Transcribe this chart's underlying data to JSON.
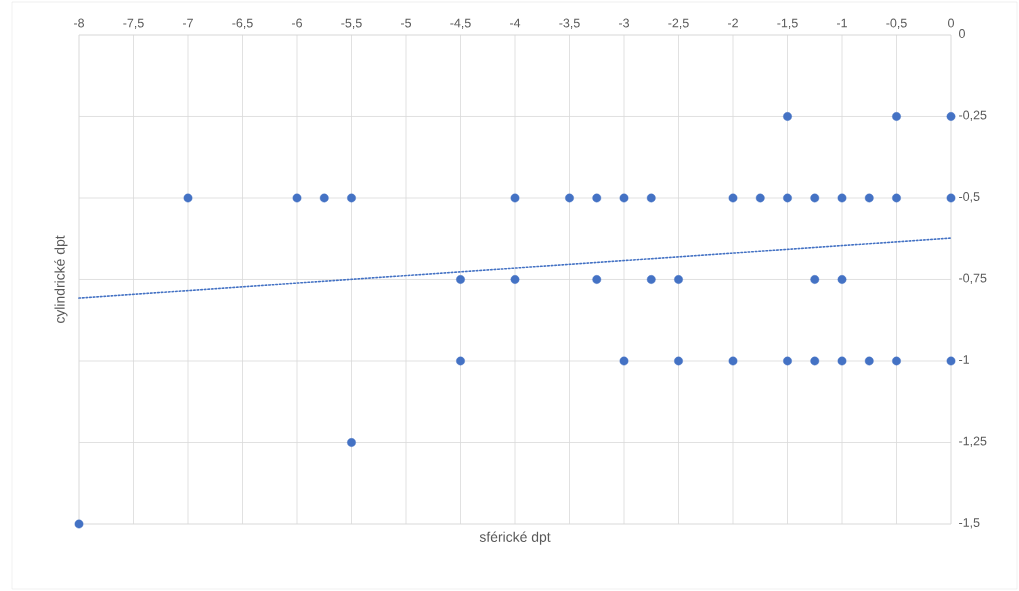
{
  "chart_data": {
    "type": "scatter",
    "xlabel": "sférické dpt",
    "ylabel": "cylindrické dpt",
    "xlim": [
      -8,
      0
    ],
    "ylim": [
      -1.5,
      0
    ],
    "xticks": [
      -8,
      {
        "value": -7.5,
        "label": "-7,5"
      },
      -7,
      {
        "value": -6.5,
        "label": "-6,5"
      },
      -6,
      {
        "value": -5.5,
        "label": "-5,5"
      },
      -5,
      {
        "value": -4.5,
        "label": "-4,5"
      },
      -4,
      {
        "value": -3.5,
        "label": "-3,5"
      },
      -3,
      {
        "value": -2.5,
        "label": "-2,5"
      },
      -2,
      {
        "value": -1.5,
        "label": "-1,5"
      },
      -1,
      {
        "value": -0.5,
        "label": "-0,5"
      },
      0
    ],
    "yticks": [
      {
        "value": -1.5,
        "label": "-1,5"
      },
      {
        "value": -1.25,
        "label": "-1,25"
      },
      -1,
      {
        "value": -0.75,
        "label": "-0,75"
      },
      {
        "value": -0.5,
        "label": "-0,5"
      },
      {
        "value": -0.25,
        "label": "-0,25"
      },
      0
    ],
    "grid": true,
    "series": [
      {
        "type": "scatter",
        "marker": "circle",
        "color": "#4472c4",
        "x": [
          -1.5,
          -0.5,
          0,
          -7,
          -6,
          -5.75,
          -5.5,
          -4,
          -3.5,
          -3.25,
          -3,
          -2.75,
          -2,
          -1.75,
          -1.5,
          -1.25,
          -1,
          -0.75,
          -0.5,
          0,
          -4.5,
          -4,
          -3.25,
          -2.75,
          -2.5,
          -1.25,
          -1,
          -4.5,
          -3,
          -2.5,
          -2,
          -1.5,
          -1.25,
          -1,
          -0.75,
          -0.5,
          0,
          -5.5,
          -8
        ],
        "values": [
          -0.25,
          -0.25,
          -0.25,
          -0.5,
          -0.5,
          -0.5,
          -0.5,
          -0.5,
          -0.5,
          -0.5,
          -0.5,
          -0.5,
          -0.5,
          -0.5,
          -0.5,
          -0.5,
          -0.5,
          -0.5,
          -0.5,
          -0.5,
          -0.75,
          -0.75,
          -0.75,
          -0.75,
          -0.75,
          -0.75,
          -0.75,
          -1,
          -1,
          -1,
          -1,
          -1,
          -1,
          -1,
          -1,
          -1,
          -1,
          -1.25,
          -1.5
        ]
      },
      {
        "type": "line",
        "line_style": "dotted",
        "marker": "none",
        "color": "#4472c4",
        "x": [
          -8,
          0
        ],
        "values": [
          -0.807,
          -0.623
        ]
      }
    ]
  }
}
